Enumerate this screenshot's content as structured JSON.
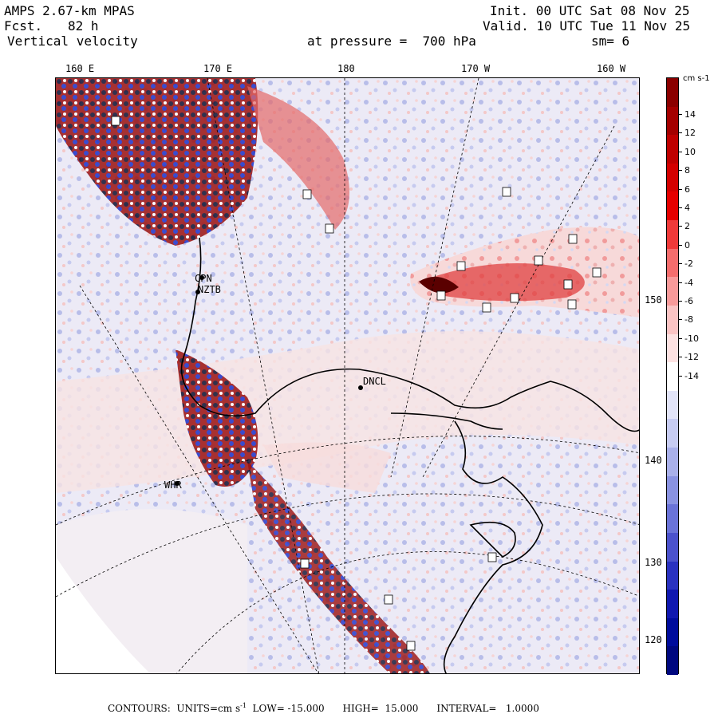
{
  "header": {
    "model": "AMPS 2.67-km MPAS",
    "fcst_label": "Fcst.",
    "fcst_value": "82 h",
    "field": "Vertical velocity",
    "init": "Init. 00 UTC Sat 08 Nov 25",
    "valid": "Valid. 10 UTC Tue 11 Nov 25",
    "level": "at pressure =  700 hPa",
    "smooth": "sm= 6"
  },
  "map": {
    "top_longitudes": [
      "160 E",
      "170 E",
      "180",
      "170 W",
      "160 W"
    ],
    "right_latitudes": [
      "150 W",
      "140 W",
      "130 W",
      "120 W"
    ],
    "stations": [
      "CPN",
      "NZTB",
      "DNCL",
      "WHR"
    ]
  },
  "colorbar": {
    "units": "cm s-1",
    "labels": [
      "14",
      "12",
      "10",
      "8",
      "6",
      "4",
      "2",
      "0",
      "-2",
      "-4",
      "-6",
      "-8",
      "-10",
      "-12",
      "-14"
    ],
    "colors": [
      "#8b0000",
      "#a40000",
      "#bf0000",
      "#d40000",
      "#e60000",
      "#f03a3a",
      "#f56d6d",
      "#f89a9a",
      "#fbc4c4",
      "#fde2e2",
      "#ffffff",
      "#e2e4f8",
      "#c7ccf2",
      "#a9b0ea",
      "#8a93e2",
      "#6a73d8",
      "#4b52cc",
      "#2a32c0",
      "#1018b0",
      "#000c9c",
      "#00087f"
    ]
  },
  "footer": {
    "contours": "CONTOURS:  UNITS=cm s",
    "units_sup": "-1",
    "low": "LOW= -15.000",
    "high": "HIGH=  15.000",
    "interval": "INTERVAL=   1.0000"
  }
}
